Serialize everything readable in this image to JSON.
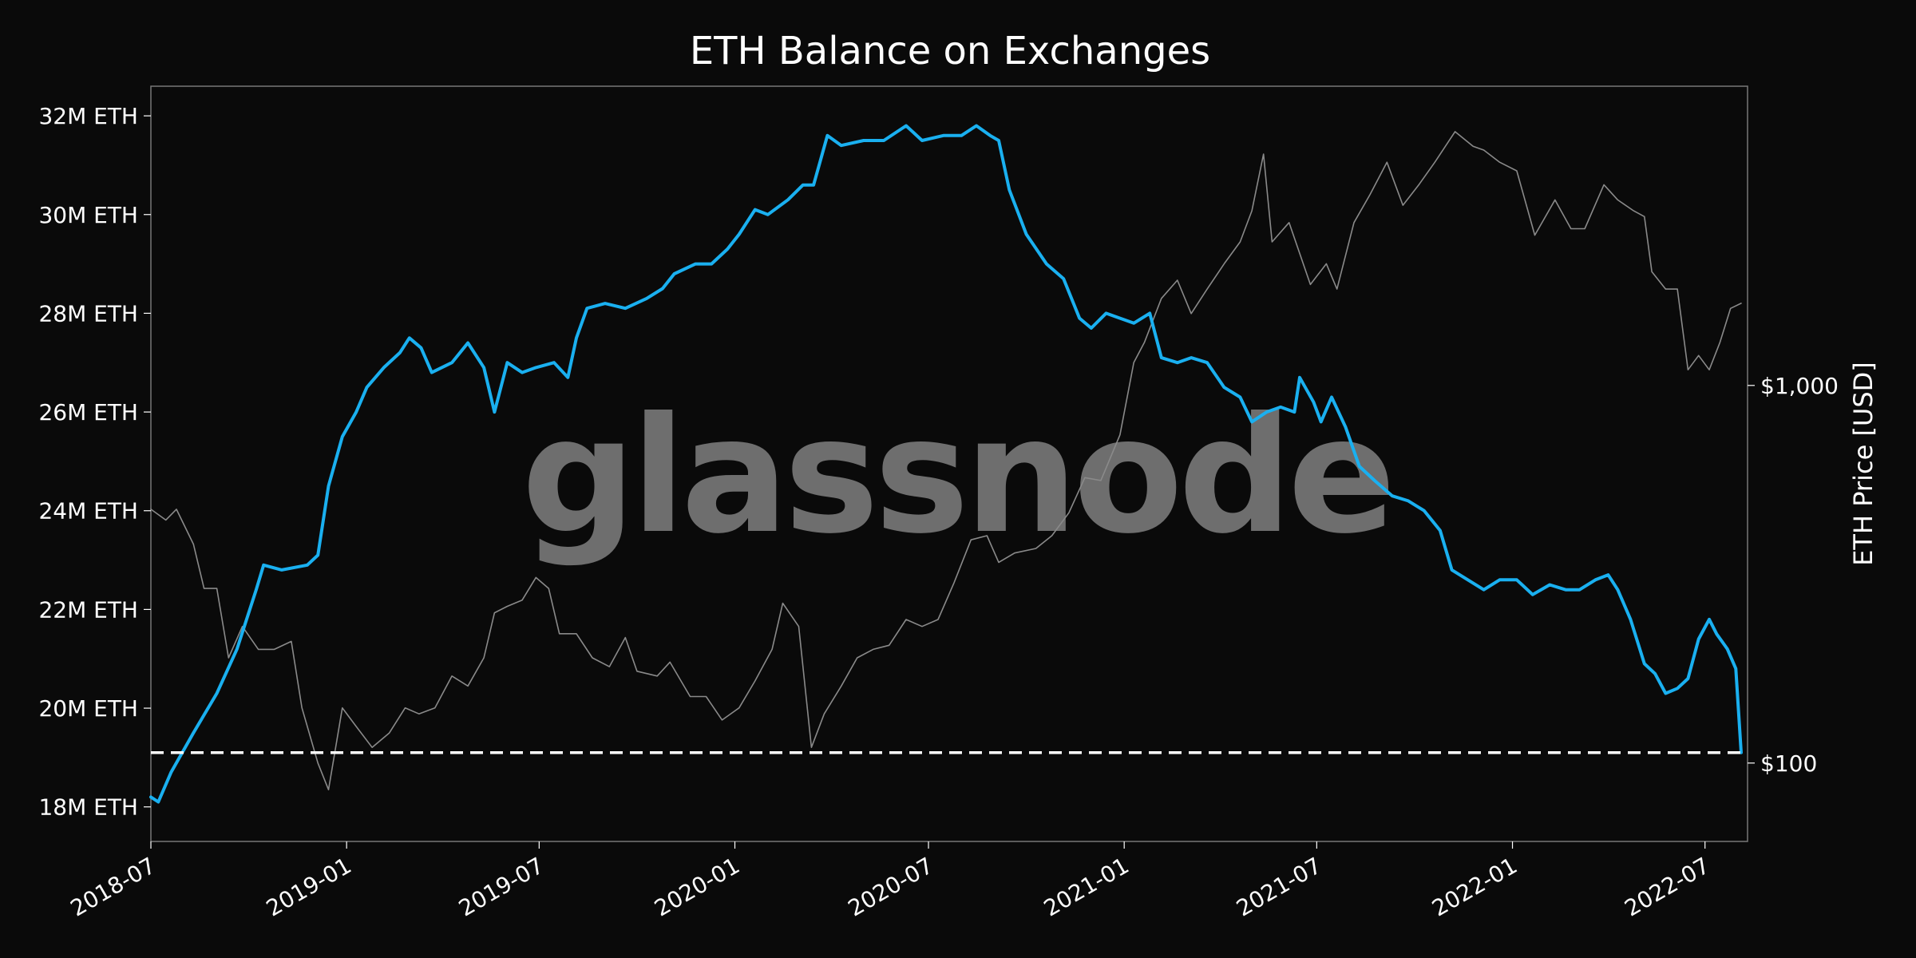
{
  "chart_data": {
    "type": "line",
    "title": "ETH Balance on Exchanges",
    "watermark": "glassnode",
    "ylabel_right": "ETH Price [USD]",
    "xlim": [
      "2018-07-01",
      "2022-08-10"
    ],
    "x_ticks": [
      "2018-07",
      "2019-01",
      "2019-07",
      "2020-01",
      "2020-07",
      "2021-01",
      "2021-07",
      "2022-01",
      "2022-07"
    ],
    "ylim_left": [
      17.3,
      32.6
    ],
    "y_ticks_left": [
      {
        "value": 18,
        "label": "18M ETH"
      },
      {
        "value": 20,
        "label": "20M ETH"
      },
      {
        "value": 22,
        "label": "22M ETH"
      },
      {
        "value": 24,
        "label": "24M ETH"
      },
      {
        "value": 26,
        "label": "26M ETH"
      },
      {
        "value": 28,
        "label": "28M ETH"
      },
      {
        "value": 30,
        "label": "30M ETH"
      },
      {
        "value": 32,
        "label": "32M ETH"
      }
    ],
    "ylim_right": [
      62,
      6200
    ],
    "scale_right": "log",
    "y_ticks_right": [
      {
        "value": 100,
        "label": "$100"
      },
      {
        "value": 1000,
        "label": "$1,000"
      }
    ],
    "hline": {
      "value": 19.1,
      "style": "dashed",
      "color": "#ffffff"
    },
    "grid": false,
    "series": [
      {
        "axis": "left",
        "color": "#1ab0f0",
        "unit": "M ETH",
        "points": [
          [
            "2018-07-01",
            18.2
          ],
          [
            "2018-07-08",
            18.1
          ],
          [
            "2018-07-20",
            18.7
          ],
          [
            "2018-08-10",
            19.5
          ],
          [
            "2018-09-01",
            20.3
          ],
          [
            "2018-09-20",
            21.2
          ],
          [
            "2018-10-08",
            22.4
          ],
          [
            "2018-10-15",
            22.9
          ],
          [
            "2018-11-01",
            22.8
          ],
          [
            "2018-11-25",
            22.9
          ],
          [
            "2018-12-05",
            23.1
          ],
          [
            "2018-12-15",
            24.5
          ],
          [
            "2018-12-28",
            25.5
          ],
          [
            "2019-01-10",
            26.0
          ],
          [
            "2019-01-20",
            26.5
          ],
          [
            "2019-02-05",
            26.9
          ],
          [
            "2019-02-20",
            27.2
          ],
          [
            "2019-03-01",
            27.5
          ],
          [
            "2019-03-12",
            27.3
          ],
          [
            "2019-03-22",
            26.8
          ],
          [
            "2019-04-10",
            27.0
          ],
          [
            "2019-04-25",
            27.4
          ],
          [
            "2019-05-10",
            26.9
          ],
          [
            "2019-05-20",
            26.0
          ],
          [
            "2019-06-01",
            27.0
          ],
          [
            "2019-06-15",
            26.8
          ],
          [
            "2019-06-28",
            26.9
          ],
          [
            "2019-07-15",
            27.0
          ],
          [
            "2019-07-28",
            26.7
          ],
          [
            "2019-08-05",
            27.5
          ],
          [
            "2019-08-15",
            28.1
          ],
          [
            "2019-09-01",
            28.2
          ],
          [
            "2019-09-20",
            28.1
          ],
          [
            "2019-10-10",
            28.3
          ],
          [
            "2019-10-25",
            28.5
          ],
          [
            "2019-11-05",
            28.8
          ],
          [
            "2019-11-25",
            29.0
          ],
          [
            "2019-12-10",
            29.0
          ],
          [
            "2019-12-25",
            29.3
          ],
          [
            "2020-01-05",
            29.6
          ],
          [
            "2020-01-20",
            30.1
          ],
          [
            "2020-02-01",
            30.0
          ],
          [
            "2020-02-20",
            30.3
          ],
          [
            "2020-03-05",
            30.6
          ],
          [
            "2020-03-15",
            30.6
          ],
          [
            "2020-03-28",
            31.6
          ],
          [
            "2020-04-10",
            31.4
          ],
          [
            "2020-05-01",
            31.5
          ],
          [
            "2020-05-20",
            31.5
          ],
          [
            "2020-06-10",
            31.8
          ],
          [
            "2020-06-25",
            31.5
          ],
          [
            "2020-07-15",
            31.6
          ],
          [
            "2020-08-01",
            31.6
          ],
          [
            "2020-08-15",
            31.8
          ],
          [
            "2020-08-28",
            31.6
          ],
          [
            "2020-09-05",
            31.5
          ],
          [
            "2020-09-15",
            30.5
          ],
          [
            "2020-10-01",
            29.6
          ],
          [
            "2020-10-20",
            29.0
          ],
          [
            "2020-11-05",
            28.7
          ],
          [
            "2020-11-20",
            27.9
          ],
          [
            "2020-12-01",
            27.7
          ],
          [
            "2020-12-15",
            28.0
          ],
          [
            "2020-12-28",
            27.9
          ],
          [
            "2021-01-10",
            27.8
          ],
          [
            "2021-01-25",
            28.0
          ],
          [
            "2021-02-05",
            27.1
          ],
          [
            "2021-02-20",
            27.0
          ],
          [
            "2021-03-05",
            27.1
          ],
          [
            "2021-03-20",
            27.0
          ],
          [
            "2021-04-05",
            26.5
          ],
          [
            "2021-04-20",
            26.3
          ],
          [
            "2021-05-01",
            25.8
          ],
          [
            "2021-05-15",
            26.0
          ],
          [
            "2021-05-28",
            26.1
          ],
          [
            "2021-06-10",
            26.0
          ],
          [
            "2021-06-15",
            26.7
          ],
          [
            "2021-06-28",
            26.2
          ],
          [
            "2021-07-05",
            25.8
          ],
          [
            "2021-07-15",
            26.3
          ],
          [
            "2021-07-28",
            25.7
          ],
          [
            "2021-08-10",
            24.9
          ],
          [
            "2021-08-25",
            24.6
          ],
          [
            "2021-09-10",
            24.3
          ],
          [
            "2021-09-25",
            24.2
          ],
          [
            "2021-10-10",
            24.0
          ],
          [
            "2021-10-25",
            23.6
          ],
          [
            "2021-11-05",
            22.8
          ],
          [
            "2021-11-20",
            22.6
          ],
          [
            "2021-12-05",
            22.4
          ],
          [
            "2021-12-20",
            22.6
          ],
          [
            "2022-01-05",
            22.6
          ],
          [
            "2022-01-20",
            22.3
          ],
          [
            "2022-02-05",
            22.5
          ],
          [
            "2022-02-20",
            22.4
          ],
          [
            "2022-03-05",
            22.4
          ],
          [
            "2022-03-20",
            22.6
          ],
          [
            "2022-04-01",
            22.7
          ],
          [
            "2022-04-10",
            22.4
          ],
          [
            "2022-04-22",
            21.8
          ],
          [
            "2022-05-05",
            20.9
          ],
          [
            "2022-05-15",
            20.7
          ],
          [
            "2022-05-25",
            20.3
          ],
          [
            "2022-06-05",
            20.4
          ],
          [
            "2022-06-15",
            20.6
          ],
          [
            "2022-06-25",
            21.4
          ],
          [
            "2022-07-05",
            21.8
          ],
          [
            "2022-07-12",
            21.5
          ],
          [
            "2022-07-22",
            21.2
          ],
          [
            "2022-07-30",
            20.8
          ],
          [
            "2022-08-04",
            19.1
          ]
        ]
      },
      {
        "axis": "right",
        "color": "#8a8a8a",
        "unit": "USD",
        "points": [
          [
            "2018-07-01",
            470
          ],
          [
            "2018-07-15",
            440
          ],
          [
            "2018-07-25",
            470
          ],
          [
            "2018-08-10",
            380
          ],
          [
            "2018-08-20",
            290
          ],
          [
            "2018-09-01",
            290
          ],
          [
            "2018-09-12",
            190
          ],
          [
            "2018-09-25",
            230
          ],
          [
            "2018-10-10",
            200
          ],
          [
            "2018-10-25",
            200
          ],
          [
            "2018-11-10",
            210
          ],
          [
            "2018-11-20",
            140
          ],
          [
            "2018-12-05",
            100
          ],
          [
            "2018-12-15",
            85
          ],
          [
            "2018-12-28",
            140
          ],
          [
            "2019-01-10",
            125
          ],
          [
            "2019-01-25",
            110
          ],
          [
            "2019-02-10",
            120
          ],
          [
            "2019-02-25",
            140
          ],
          [
            "2019-03-10",
            135
          ],
          [
            "2019-03-25",
            140
          ],
          [
            "2019-04-10",
            170
          ],
          [
            "2019-04-25",
            160
          ],
          [
            "2019-05-10",
            190
          ],
          [
            "2019-05-20",
            250
          ],
          [
            "2019-06-01",
            260
          ],
          [
            "2019-06-15",
            270
          ],
          [
            "2019-06-28",
            310
          ],
          [
            "2019-07-10",
            290
          ],
          [
            "2019-07-20",
            220
          ],
          [
            "2019-08-05",
            220
          ],
          [
            "2019-08-20",
            190
          ],
          [
            "2019-09-05",
            180
          ],
          [
            "2019-09-20",
            215
          ],
          [
            "2019-10-01",
            175
          ],
          [
            "2019-10-20",
            170
          ],
          [
            "2019-11-01",
            185
          ],
          [
            "2019-11-20",
            150
          ],
          [
            "2019-12-05",
            150
          ],
          [
            "2019-12-20",
            130
          ],
          [
            "2020-01-05",
            140
          ],
          [
            "2020-01-20",
            165
          ],
          [
            "2020-02-05",
            200
          ],
          [
            "2020-02-15",
            265
          ],
          [
            "2020-03-01",
            230
          ],
          [
            "2020-03-13",
            110
          ],
          [
            "2020-03-25",
            135
          ],
          [
            "2020-04-10",
            160
          ],
          [
            "2020-04-25",
            190
          ],
          [
            "2020-05-10",
            200
          ],
          [
            "2020-05-25",
            205
          ],
          [
            "2020-06-10",
            240
          ],
          [
            "2020-06-25",
            230
          ],
          [
            "2020-07-10",
            240
          ],
          [
            "2020-07-25",
            300
          ],
          [
            "2020-08-10",
            390
          ],
          [
            "2020-08-25",
            400
          ],
          [
            "2020-09-05",
            340
          ],
          [
            "2020-09-20",
            360
          ],
          [
            "2020-10-10",
            370
          ],
          [
            "2020-10-25",
            400
          ],
          [
            "2020-11-10",
            460
          ],
          [
            "2020-11-25",
            570
          ],
          [
            "2020-12-10",
            560
          ],
          [
            "2020-12-28",
            740
          ],
          [
            "2021-01-10",
            1150
          ],
          [
            "2021-01-20",
            1300
          ],
          [
            "2021-02-05",
            1700
          ],
          [
            "2021-02-20",
            1900
          ],
          [
            "2021-03-05",
            1550
          ],
          [
            "2021-03-20",
            1800
          ],
          [
            "2021-04-05",
            2100
          ],
          [
            "2021-04-20",
            2400
          ],
          [
            "2021-05-01",
            2900
          ],
          [
            "2021-05-12",
            4100
          ],
          [
            "2021-05-20",
            2400
          ],
          [
            "2021-06-05",
            2700
          ],
          [
            "2021-06-25",
            1850
          ],
          [
            "2021-07-10",
            2100
          ],
          [
            "2021-07-20",
            1800
          ],
          [
            "2021-08-05",
            2700
          ],
          [
            "2021-08-20",
            3200
          ],
          [
            "2021-09-05",
            3900
          ],
          [
            "2021-09-20",
            3000
          ],
          [
            "2021-10-05",
            3400
          ],
          [
            "2021-10-20",
            3900
          ],
          [
            "2021-11-08",
            4700
          ],
          [
            "2021-11-25",
            4300
          ],
          [
            "2021-12-05",
            4200
          ],
          [
            "2021-12-20",
            3900
          ],
          [
            "2022-01-05",
            3700
          ],
          [
            "2022-01-22",
            2500
          ],
          [
            "2022-02-10",
            3100
          ],
          [
            "2022-02-25",
            2600
          ],
          [
            "2022-03-10",
            2600
          ],
          [
            "2022-03-28",
            3400
          ],
          [
            "2022-04-10",
            3100
          ],
          [
            "2022-04-25",
            2900
          ],
          [
            "2022-05-05",
            2800
          ],
          [
            "2022-05-12",
            2000
          ],
          [
            "2022-05-25",
            1800
          ],
          [
            "2022-06-05",
            1800
          ],
          [
            "2022-06-15",
            1100
          ],
          [
            "2022-06-25",
            1200
          ],
          [
            "2022-07-05",
            1100
          ],
          [
            "2022-07-15",
            1300
          ],
          [
            "2022-07-25",
            1600
          ],
          [
            "2022-08-04",
            1650
          ]
        ]
      }
    ]
  }
}
